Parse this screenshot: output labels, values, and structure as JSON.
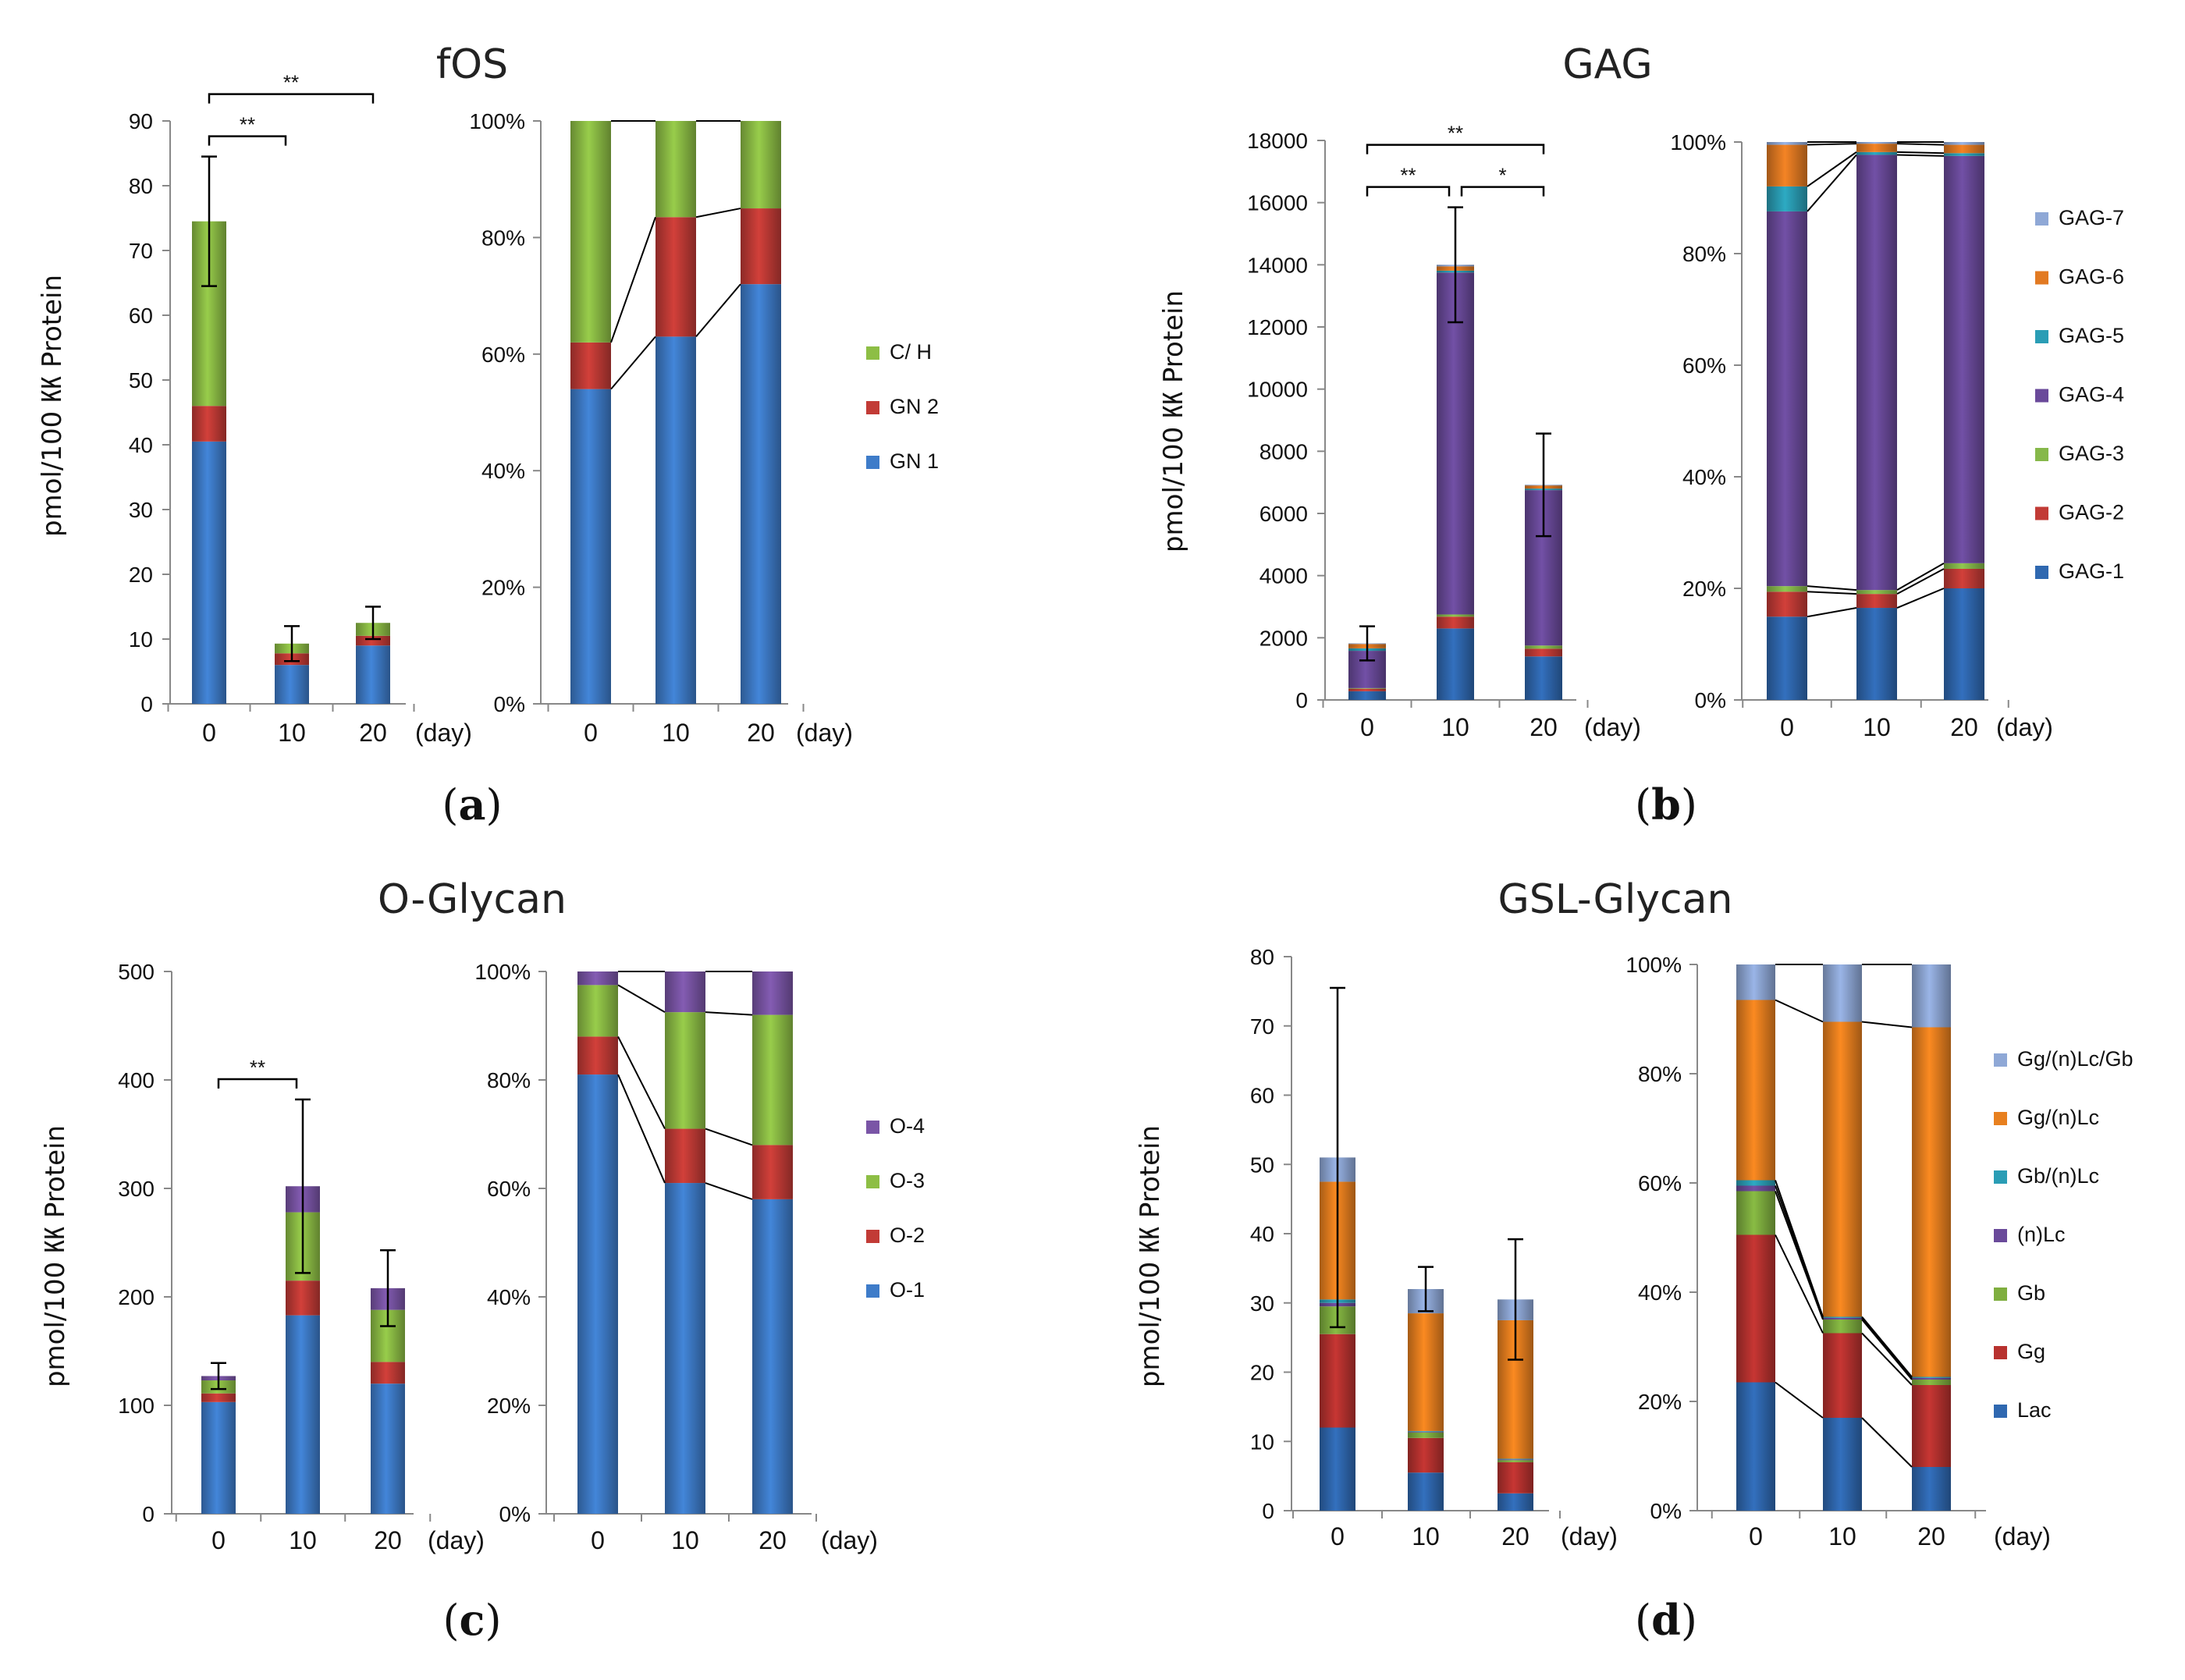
{
  "chart_data": [
    {
      "id": "fos",
      "title": "fOS",
      "panel_label": "a",
      "ylabel": "pmol/100 ㏍ Protein",
      "x_unit": "(day)",
      "categories": [
        "0",
        "10",
        "20"
      ],
      "ylim": [
        0,
        90
      ],
      "yticks": [
        0,
        10,
        20,
        30,
        40,
        50,
        60,
        70,
        80,
        90
      ],
      "pct_ticks": [
        "0%",
        "20%",
        "40%",
        "60%",
        "80%",
        "100%"
      ],
      "legend_order": [
        "C/ H",
        "GN 2",
        "GN 1"
      ],
      "series": [
        {
          "name": "GN 1",
          "color": "#3E7CC9",
          "values": [
            40.5,
            6.0,
            9.0
          ],
          "pct": [
            54,
            63,
            72
          ]
        },
        {
          "name": "GN 2",
          "color": "#C23B36",
          "values": [
            5.5,
            1.8,
            1.5
          ],
          "pct": [
            8,
            20.5,
            13
          ]
        },
        {
          "name": "C/ H",
          "color": "#8DBE45",
          "values": [
            28.5,
            1.5,
            2.0
          ],
          "pct": [
            38,
            16.5,
            15
          ]
        }
      ],
      "errors": [
        10,
        2.7,
        2.5
      ],
      "significance": [
        {
          "from": 0,
          "to": 1,
          "label": "**",
          "level": 0
        },
        {
          "from": 0,
          "to": 2,
          "label": "**",
          "level": 1
        }
      ]
    },
    {
      "id": "gag",
      "title": "GAG",
      "panel_label": "b",
      "ylabel": "pmol/100 ㏍ Protein",
      "x_unit": "(day)",
      "categories": [
        "0",
        "10",
        "20"
      ],
      "ylim": [
        0,
        18000
      ],
      "yticks": [
        0,
        2000,
        4000,
        6000,
        8000,
        10000,
        12000,
        14000,
        16000,
        18000
      ],
      "pct_ticks": [
        "0%",
        "20%",
        "40%",
        "60%",
        "80%",
        "100%"
      ],
      "legend_order": [
        "GAG-7",
        "GAG-6",
        "GAG-5",
        "GAG-4",
        "GAG-3",
        "GAG-2",
        "GAG-1"
      ],
      "series": [
        {
          "name": "GAG-1",
          "color": "#2F68B0",
          "values": [
            280,
            2300,
            1400
          ],
          "pct": [
            15,
            16.5,
            20
          ]
        },
        {
          "name": "GAG-2",
          "color": "#C23B36",
          "values": [
            80,
            380,
            250
          ],
          "pct": [
            4.5,
            2.5,
            3.5
          ]
        },
        {
          "name": "GAG-3",
          "color": "#86B84A",
          "values": [
            20,
            70,
            100
          ],
          "pct": [
            1,
            0.7,
            1
          ]
        },
        {
          "name": "GAG-4",
          "color": "#6A4A9A",
          "values": [
            1200,
            11000,
            5000
          ],
          "pct": [
            67.5,
            78,
            73
          ]
        },
        {
          "name": "GAG-5",
          "color": "#2A9DB5",
          "values": [
            80,
            60,
            50
          ],
          "pct": [
            4.5,
            0.5,
            0.5
          ]
        },
        {
          "name": "GAG-6",
          "color": "#E27A22",
          "values": [
            140,
            140,
            100
          ],
          "pct": [
            7.5,
            1.5,
            1.5
          ]
        },
        {
          "name": "GAG-7",
          "color": "#8FA8D6",
          "values": [
            20,
            50,
            20
          ],
          "pct": [
            0.5,
            0.3,
            0.5
          ]
        }
      ],
      "errors": [
        550,
        1850,
        1650
      ],
      "significance": [
        {
          "from": 0,
          "to": 1,
          "label": "**",
          "level": 0
        },
        {
          "from": 1,
          "to": 2,
          "label": "*",
          "level": 0
        },
        {
          "from": 0,
          "to": 2,
          "label": "**",
          "level": 1
        }
      ]
    },
    {
      "id": "oglycan",
      "title": "O-Glycan",
      "panel_label": "c",
      "ylabel": "pmol/100 ㏍ Protein",
      "x_unit": "(day)",
      "categories": [
        "0",
        "10",
        "20"
      ],
      "ylim": [
        0,
        500
      ],
      "yticks": [
        0,
        100,
        200,
        300,
        400,
        500
      ],
      "pct_ticks": [
        "0%",
        "20%",
        "40%",
        "60%",
        "80%",
        "100%"
      ],
      "legend_order": [
        "O-4",
        "O-3",
        "O-2",
        "O-1"
      ],
      "series": [
        {
          "name": "O-1",
          "color": "#3E7CC9",
          "values": [
            103,
            183,
            120
          ],
          "pct": [
            81,
            61,
            58
          ]
        },
        {
          "name": "O-2",
          "color": "#C23B36",
          "values": [
            8,
            32,
            20
          ],
          "pct": [
            7,
            10,
            10
          ]
        },
        {
          "name": "O-3",
          "color": "#8DBE45",
          "values": [
            12,
            63,
            48
          ],
          "pct": [
            9.5,
            21.5,
            24
          ]
        },
        {
          "name": "O-4",
          "color": "#7A55A6",
          "values": [
            4,
            24,
            20
          ],
          "pct": [
            2.5,
            7.5,
            8
          ]
        }
      ],
      "errors": [
        12,
        80,
        35
      ],
      "significance": [
        {
          "from": 0,
          "to": 1,
          "label": "**",
          "level": 0
        }
      ]
    },
    {
      "id": "gsl",
      "title": "GSL-Glycan",
      "panel_label": "d",
      "ylabel": "pmol/100 ㏍ Protein",
      "x_unit": "(day)",
      "categories": [
        "0",
        "10",
        "20"
      ],
      "ylim": [
        0,
        80
      ],
      "yticks": [
        0,
        10,
        20,
        30,
        40,
        50,
        60,
        70,
        80
      ],
      "pct_ticks": [
        "0%",
        "20%",
        "40%",
        "60%",
        "80%",
        "100%"
      ],
      "legend_order": [
        "Gg/(n)Lc/Gb",
        "Gg/(n)Lc",
        "Gb/(n)Lc",
        "(n)Lc",
        "Gb",
        "Gg",
        "Lac"
      ],
      "series": [
        {
          "name": "Lac",
          "color": "#2F68B0",
          "values": [
            12,
            5.5,
            2.5
          ],
          "pct": [
            23.5,
            17,
            8
          ]
        },
        {
          "name": "Gg",
          "color": "#B8322F",
          "values": [
            13.5,
            5,
            4.5
          ],
          "pct": [
            27,
            15.5,
            15
          ]
        },
        {
          "name": "Gb",
          "color": "#7FAE3F",
          "values": [
            4,
            0.8,
            0.3
          ],
          "pct": [
            8,
            2.5,
            1
          ]
        },
        {
          "name": "(n)Lc",
          "color": "#6A4A9A",
          "values": [
            0.5,
            0.1,
            0.1
          ],
          "pct": [
            1,
            0.3,
            0.3
          ]
        },
        {
          "name": "Gb/(n)Lc",
          "color": "#2A9DB5",
          "values": [
            0.5,
            0.1,
            0.1
          ],
          "pct": [
            1,
            0.2,
            0.2
          ]
        },
        {
          "name": "Gg/(n)Lc",
          "color": "#E8801F",
          "values": [
            17,
            17,
            20
          ],
          "pct": [
            33,
            54,
            64
          ]
        },
        {
          "name": "Gg/(n)Lc/Gb",
          "color": "#8FA8D6",
          "values": [
            3.5,
            3.5,
            3
          ],
          "pct": [
            6.5,
            10.5,
            11.5
          ]
        }
      ],
      "errors": [
        24.5,
        3.2,
        8.7
      ],
      "significance": []
    }
  ]
}
